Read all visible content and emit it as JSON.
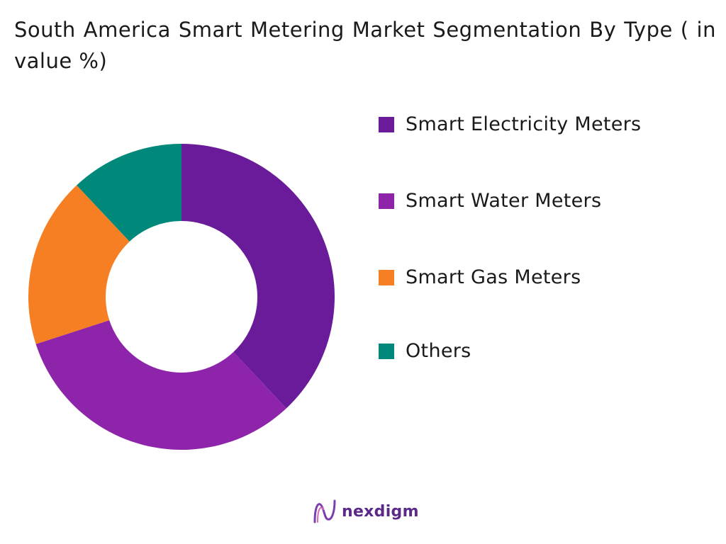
{
  "title": "South America Smart Metering Market Segmentation By Type ( in value %)",
  "chart_data": {
    "type": "pie",
    "donut": true,
    "categories": [
      "Smart Electricity Meters",
      "Smart Water Meters",
      "Smart Gas Meters",
      "Others"
    ],
    "values": [
      38,
      32,
      18,
      12
    ],
    "colors": [
      "#6a1b9a",
      "#8e24aa",
      "#f57f22",
      "#00897b"
    ],
    "legend_position": "right"
  },
  "legend": {
    "items": [
      {
        "label": "Smart Electricity Meters",
        "color": "#6a1b9a"
      },
      {
        "label": "Smart Water Meters",
        "color": "#8e24aa"
      },
      {
        "label": "Smart Gas Meters",
        "color": "#f57f22"
      },
      {
        "label": "Others",
        "color": "#00897b"
      }
    ]
  },
  "logo": {
    "text": "nexdigm"
  }
}
